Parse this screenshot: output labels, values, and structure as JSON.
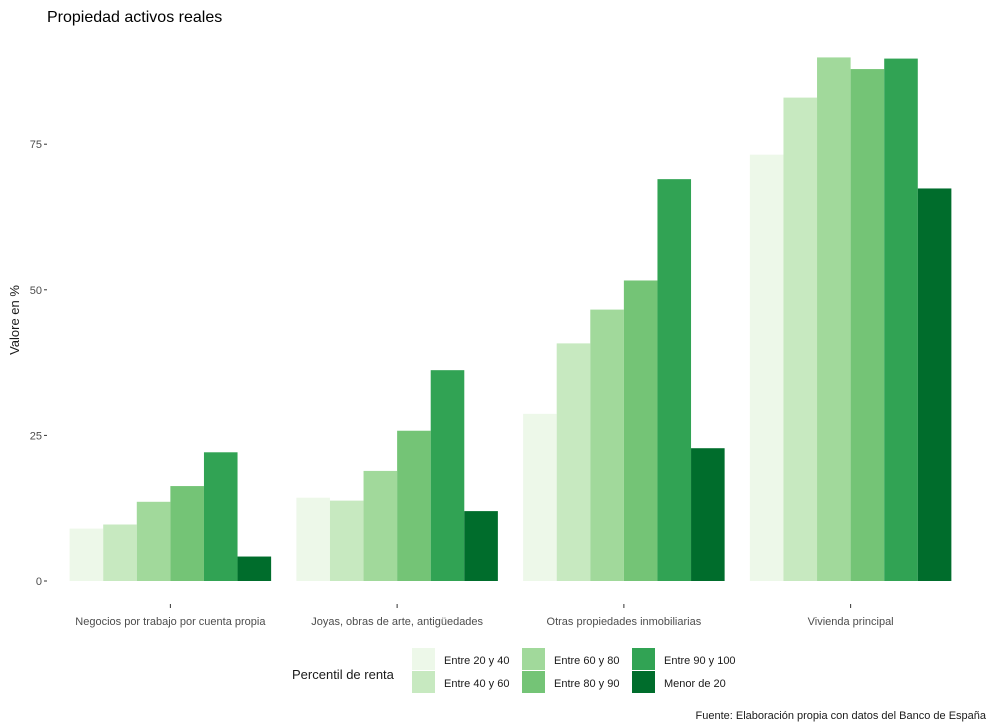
{
  "chart_data": {
    "type": "bar",
    "title": "Propiedad activos reales",
    "xlabel": "",
    "ylabel": "Valore en %",
    "caption": "Fuente: Elaboración propia con datos del Banco de España",
    "ylim": [
      0,
      90
    ],
    "yticks": [
      0,
      25,
      50,
      75
    ],
    "grid": false,
    "legend_position": "bottom",
    "legend_title": "Percentil de renta",
    "categories": [
      "Negocios por trabajo por cuenta propia",
      "Joyas, obras de arte, antigüedades",
      "Otras propiedades inmobiliarias",
      "Vivienda principal"
    ],
    "series": [
      {
        "name": "Entre 20 y 40",
        "color": "#edf8e9",
        "values": [
          9.0,
          14.3,
          28.7,
          73.2
        ]
      },
      {
        "name": "Entre 40 y 60",
        "color": "#c7e9c0",
        "values": [
          9.7,
          13.8,
          40.8,
          83.0
        ]
      },
      {
        "name": "Entre 60 y 80",
        "color": "#a1d99b",
        "values": [
          13.6,
          18.9,
          46.6,
          89.9
        ]
      },
      {
        "name": "Entre 80 y 90",
        "color": "#74c476",
        "values": [
          16.3,
          25.8,
          51.6,
          87.9
        ]
      },
      {
        "name": "Entre 90 y 100",
        "color": "#31a354",
        "values": [
          22.1,
          36.2,
          69.0,
          89.7
        ]
      },
      {
        "name": "Menor de 20",
        "color": "#006d2c",
        "values": [
          4.2,
          12.0,
          22.8,
          67.4
        ]
      }
    ]
  }
}
